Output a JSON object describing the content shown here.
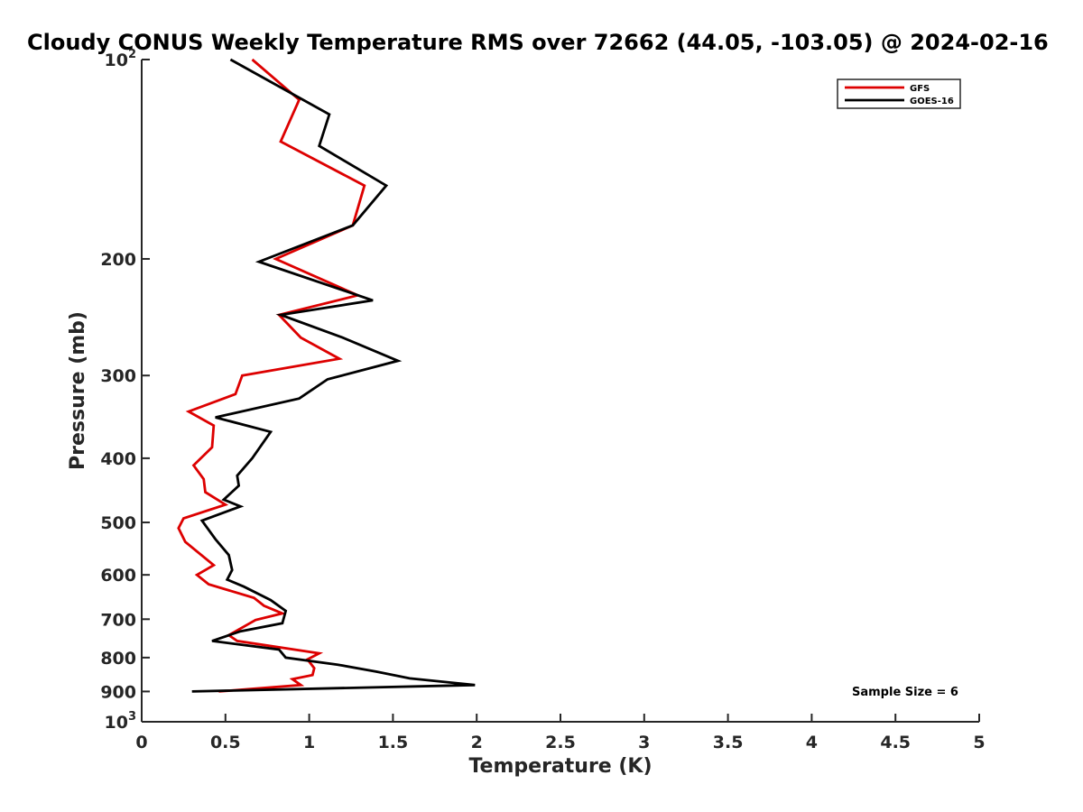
{
  "chart_data": {
    "type": "line",
    "title": "Cloudy CONUS Weekly Temperature RMS over 72662 (44.05, -103.05) @ 2024-02-16",
    "xlabel": "Temperature (K)",
    "ylabel": "Pressure (mb)",
    "xlim": [
      0,
      5
    ],
    "ylim": [
      100,
      1000
    ],
    "y_scale": "log",
    "y_reversed": true,
    "x_ticks": [
      "0",
      "0.5",
      "1",
      "1.5",
      "2",
      "2.5",
      "3",
      "3.5",
      "4",
      "4.5",
      "5"
    ],
    "y_ticks": [
      {
        "value": 100,
        "label": "10",
        "sup": "2"
      },
      {
        "value": 200,
        "label": "200"
      },
      {
        "value": 300,
        "label": "300"
      },
      {
        "value": 400,
        "label": "400"
      },
      {
        "value": 500,
        "label": "500"
      },
      {
        "value": 600,
        "label": "600"
      },
      {
        "value": 700,
        "label": "700"
      },
      {
        "value": 800,
        "label": "800"
      },
      {
        "value": 900,
        "label": "900"
      },
      {
        "value": 1000,
        "label": "10",
        "sup": "3"
      }
    ],
    "grid": false,
    "legend": "top-right",
    "series": [
      {
        "name": "GFS",
        "color": "#dd0000",
        "points": [
          [
            0.66,
            100
          ],
          [
            0.94,
            115
          ],
          [
            0.83,
            133
          ],
          [
            1.33,
            155
          ],
          [
            1.26,
            178
          ],
          [
            0.8,
            200
          ],
          [
            1.29,
            227
          ],
          [
            0.82,
            243
          ],
          [
            0.95,
            263
          ],
          [
            1.18,
            283
          ],
          [
            0.6,
            300
          ],
          [
            0.56,
            320
          ],
          [
            0.28,
            340
          ],
          [
            0.43,
            357
          ],
          [
            0.42,
            385
          ],
          [
            0.31,
            410
          ],
          [
            0.37,
            430
          ],
          [
            0.38,
            450
          ],
          [
            0.5,
            470
          ],
          [
            0.25,
            493
          ],
          [
            0.22,
            510
          ],
          [
            0.26,
            535
          ],
          [
            0.43,
            580
          ],
          [
            0.33,
            600
          ],
          [
            0.4,
            620
          ],
          [
            0.67,
            650
          ],
          [
            0.73,
            668
          ],
          [
            0.84,
            686
          ],
          [
            0.68,
            702
          ],
          [
            0.52,
            740
          ],
          [
            0.57,
            755
          ],
          [
            1.06,
            788
          ],
          [
            0.99,
            805
          ],
          [
            1.03,
            830
          ],
          [
            1.02,
            850
          ],
          [
            0.9,
            862
          ],
          [
            0.95,
            880
          ],
          [
            0.46,
            900
          ]
        ]
      },
      {
        "name": "GOES-16",
        "color": "#000000",
        "points": [
          [
            0.53,
            100
          ],
          [
            1.12,
            121
          ],
          [
            1.06,
            135
          ],
          [
            1.46,
            155
          ],
          [
            1.26,
            178
          ],
          [
            0.7,
            202
          ],
          [
            1.38,
            231
          ],
          [
            0.83,
            243
          ],
          [
            1.2,
            263
          ],
          [
            1.53,
            285
          ],
          [
            1.11,
            304
          ],
          [
            0.94,
            325
          ],
          [
            0.44,
            347
          ],
          [
            0.77,
            365
          ],
          [
            0.66,
            400
          ],
          [
            0.57,
            425
          ],
          [
            0.58,
            440
          ],
          [
            0.49,
            462
          ],
          [
            0.59,
            473
          ],
          [
            0.36,
            497
          ],
          [
            0.44,
            530
          ],
          [
            0.52,
            560
          ],
          [
            0.54,
            590
          ],
          [
            0.51,
            610
          ],
          [
            0.61,
            625
          ],
          [
            0.77,
            655
          ],
          [
            0.86,
            680
          ],
          [
            0.84,
            710
          ],
          [
            0.59,
            730
          ],
          [
            0.42,
            755
          ],
          [
            0.82,
            778
          ],
          [
            0.86,
            800
          ],
          [
            1.17,
            820
          ],
          [
            1.4,
            840
          ],
          [
            1.6,
            860
          ],
          [
            1.99,
            880
          ],
          [
            0.3,
            900
          ]
        ]
      }
    ],
    "annotation": "Sample Size = 6"
  }
}
